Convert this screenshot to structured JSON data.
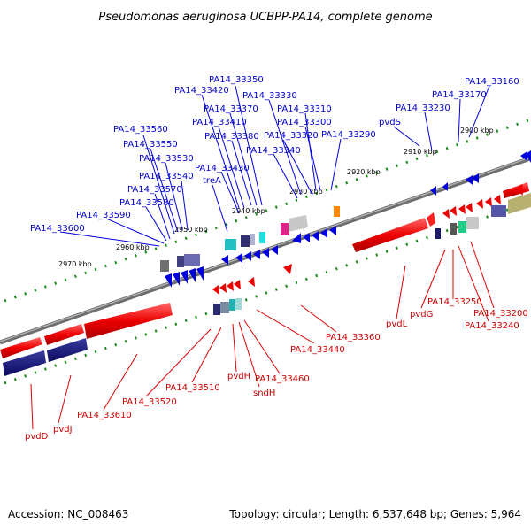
{
  "title": "Pseudomonas aeruginosa UCBPP-PA14, complete genome",
  "accession": "Accession: NC_008463",
  "topology": "Topology: circular; Length: 6,537,648 bp; Genes: 5,964",
  "colors": {
    "forward_strand": "#0000dd",
    "reverse_strand": "#dd0000",
    "backbone": "#808080",
    "ruler": "#1a8a1a"
  },
  "kbp_labels": [
    {
      "id": "k2900",
      "text": "2900 kbp"
    },
    {
      "id": "k2910",
      "text": "2910 kbp"
    },
    {
      "id": "k2920",
      "text": "2920 kbp"
    },
    {
      "id": "k2930",
      "text": "2930 kbp"
    },
    {
      "id": "k2940",
      "text": "2940 kbp"
    },
    {
      "id": "k2950",
      "text": "2950 kbp"
    },
    {
      "id": "k2960",
      "text": "2960 kbp"
    },
    {
      "id": "k2970",
      "text": "2970 kbp"
    }
  ],
  "top_labels": [
    {
      "id": "t33160",
      "text": "PA14_33160"
    },
    {
      "id": "t33170",
      "text": "PA14_33170"
    },
    {
      "id": "t33230",
      "text": "PA14_33230"
    },
    {
      "id": "tpvdS",
      "text": "pvdS"
    },
    {
      "id": "t33290",
      "text": "PA14_33290"
    },
    {
      "id": "t33300",
      "text": "PA14_33300"
    },
    {
      "id": "t33310",
      "text": "PA14_33310"
    },
    {
      "id": "t33320",
      "text": "PA14_33320"
    },
    {
      "id": "t33330",
      "text": "PA14_33330"
    },
    {
      "id": "t33340",
      "text": "PA14_33340"
    },
    {
      "id": "t33350",
      "text": "PA14_33350"
    },
    {
      "id": "t33370",
      "text": "PA14_33370"
    },
    {
      "id": "t33380",
      "text": "PA14_33380"
    },
    {
      "id": "t33410",
      "text": "PA14_33410"
    },
    {
      "id": "t33420",
      "text": "PA14_33420"
    },
    {
      "id": "t33430",
      "text": "PA14_33430"
    },
    {
      "id": "ttreA",
      "text": "treA"
    },
    {
      "id": "t33530",
      "text": "PA14_33530"
    },
    {
      "id": "t33540",
      "text": "PA14_33540"
    },
    {
      "id": "t33550",
      "text": "PA14_33550"
    },
    {
      "id": "t33560",
      "text": "PA14_33560"
    },
    {
      "id": "t33570",
      "text": "PA14_33570"
    },
    {
      "id": "t33580",
      "text": "PA14_33580"
    },
    {
      "id": "t33590",
      "text": "PA14_33590"
    },
    {
      "id": "t33600",
      "text": "PA14_33600"
    }
  ],
  "bottom_labels": [
    {
      "id": "b33200",
      "text": "PA14_33200"
    },
    {
      "id": "b33240",
      "text": "PA14_33240"
    },
    {
      "id": "b33250",
      "text": "PA14_33250"
    },
    {
      "id": "bpvdG",
      "text": "pvdG"
    },
    {
      "id": "bpvdL",
      "text": "pvdL"
    },
    {
      "id": "b33360",
      "text": "PA14_33360"
    },
    {
      "id": "b33440",
      "text": "PA14_33440"
    },
    {
      "id": "b33460",
      "text": "PA14_33460"
    },
    {
      "id": "bpvdH",
      "text": "pvdH"
    },
    {
      "id": "bsndH",
      "text": "sndH"
    },
    {
      "id": "b33510",
      "text": "PA14_33510"
    },
    {
      "id": "b33520",
      "text": "PA14_33520"
    },
    {
      "id": "b33610",
      "text": "PA14_33610"
    },
    {
      "id": "bpvdJ",
      "text": "pvdJ"
    },
    {
      "id": "bpvdD",
      "text": "pvdD"
    }
  ]
}
